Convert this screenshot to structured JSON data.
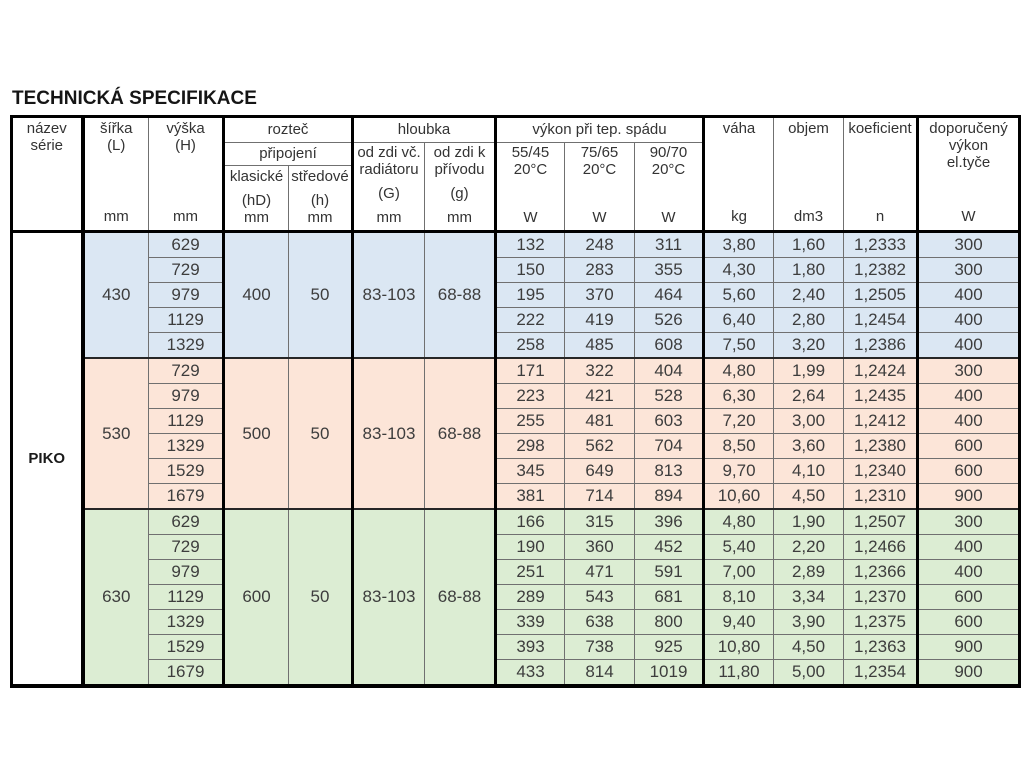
{
  "title": "TECHNICKÁ SPECIFIKACE",
  "colors": {
    "block_blue": "#dbe7f3",
    "block_salmon": "#fce5d8",
    "block_green": "#dcedd3",
    "thick_border": "#000000",
    "thin_border": "#707070"
  },
  "table": {
    "series_label": "PIKO",
    "header": {
      "col_series": {
        "l1": "název",
        "l2": "série"
      },
      "col_width": {
        "label": "šířka",
        "sub": "(L)",
        "unit": "mm"
      },
      "col_height": {
        "label": "výška",
        "sub": "(H)",
        "unit": "mm"
      },
      "grp_pitch": {
        "label": "rozteč",
        "sublabel": "připojení",
        "classic": {
          "label": "klasické",
          "sub": "(hD)",
          "unit": "mm"
        },
        "central": {
          "label": "středové",
          "sub": "(h)",
          "unit": "mm"
        }
      },
      "grp_depth": {
        "label": "hloubka",
        "incl": {
          "l1": "od zdi vč.",
          "l2": "radiátoru",
          "sub": "(G)",
          "unit": "mm"
        },
        "supply": {
          "l1": "od zdi k",
          "l2": "přívodu",
          "sub": "(g)",
          "unit": "mm"
        }
      },
      "grp_power": {
        "label": "výkon při tep. spádu",
        "cols": [
          {
            "l1": "55/45",
            "l2": "20°C",
            "unit": "W"
          },
          {
            "l1": "75/65",
            "l2": "20°C",
            "unit": "W"
          },
          {
            "l1": "90/70",
            "l2": "20°C",
            "unit": "W"
          }
        ]
      },
      "col_weight": {
        "label": "váha",
        "unit": "kg"
      },
      "col_volume": {
        "label": "objem",
        "unit": "dm3"
      },
      "col_coef": {
        "label": "koeficient",
        "unit": "n"
      },
      "col_rec": {
        "l1": "doporučený",
        "l2": "výkon",
        "l3": "el.tyče",
        "unit": "W"
      }
    },
    "blocks": [
      {
        "bg": "#dbe7f3",
        "width": "430",
        "pitch_classic": "400",
        "pitch_central": "50",
        "depth_incl": "83-103",
        "depth_supply": "68-88",
        "rows": [
          {
            "height": "629",
            "p5545": "132",
            "p7565": "248",
            "p9070": "311",
            "weight": "3,80",
            "volume": "1,60",
            "coef": "1,2333",
            "rec": "300"
          },
          {
            "height": "729",
            "p5545": "150",
            "p7565": "283",
            "p9070": "355",
            "weight": "4,30",
            "volume": "1,80",
            "coef": "1,2382",
            "rec": "300"
          },
          {
            "height": "979",
            "p5545": "195",
            "p7565": "370",
            "p9070": "464",
            "weight": "5,60",
            "volume": "2,40",
            "coef": "1,2505",
            "rec": "400"
          },
          {
            "height": "1129",
            "p5545": "222",
            "p7565": "419",
            "p9070": "526",
            "weight": "6,40",
            "volume": "2,80",
            "coef": "1,2454",
            "rec": "400"
          },
          {
            "height": "1329",
            "p5545": "258",
            "p7565": "485",
            "p9070": "608",
            "weight": "7,50",
            "volume": "3,20",
            "coef": "1,2386",
            "rec": "400"
          }
        ]
      },
      {
        "bg": "#fce5d8",
        "width": "530",
        "pitch_classic": "500",
        "pitch_central": "50",
        "depth_incl": "83-103",
        "depth_supply": "68-88",
        "rows": [
          {
            "height": "729",
            "p5545": "171",
            "p7565": "322",
            "p9070": "404",
            "weight": "4,80",
            "volume": "1,99",
            "coef": "1,2424",
            "rec": "300"
          },
          {
            "height": "979",
            "p5545": "223",
            "p7565": "421",
            "p9070": "528",
            "weight": "6,30",
            "volume": "2,64",
            "coef": "1,2435",
            "rec": "400"
          },
          {
            "height": "1129",
            "p5545": "255",
            "p7565": "481",
            "p9070": "603",
            "weight": "7,20",
            "volume": "3,00",
            "coef": "1,2412",
            "rec": "400"
          },
          {
            "height": "1329",
            "p5545": "298",
            "p7565": "562",
            "p9070": "704",
            "weight": "8,50",
            "volume": "3,60",
            "coef": "1,2380",
            "rec": "600"
          },
          {
            "height": "1529",
            "p5545": "345",
            "p7565": "649",
            "p9070": "813",
            "weight": "9,70",
            "volume": "4,10",
            "coef": "1,2340",
            "rec": "600"
          },
          {
            "height": "1679",
            "p5545": "381",
            "p7565": "714",
            "p9070": "894",
            "weight": "10,60",
            "volume": "4,50",
            "coef": "1,2310",
            "rec": "900"
          }
        ]
      },
      {
        "bg": "#dcedd3",
        "width": "630",
        "pitch_classic": "600",
        "pitch_central": "50",
        "depth_incl": "83-103",
        "depth_supply": "68-88",
        "rows": [
          {
            "height": "629",
            "p5545": "166",
            "p7565": "315",
            "p9070": "396",
            "weight": "4,80",
            "volume": "1,90",
            "coef": "1,2507",
            "rec": "300"
          },
          {
            "height": "729",
            "p5545": "190",
            "p7565": "360",
            "p9070": "452",
            "weight": "5,40",
            "volume": "2,20",
            "coef": "1,2466",
            "rec": "400"
          },
          {
            "height": "979",
            "p5545": "251",
            "p7565": "471",
            "p9070": "591",
            "weight": "7,00",
            "volume": "2,89",
            "coef": "1,2366",
            "rec": "400"
          },
          {
            "height": "1129",
            "p5545": "289",
            "p7565": "543",
            "p9070": "681",
            "weight": "8,10",
            "volume": "3,34",
            "coef": "1,2370",
            "rec": "600"
          },
          {
            "height": "1329",
            "p5545": "339",
            "p7565": "638",
            "p9070": "800",
            "weight": "9,40",
            "volume": "3,90",
            "coef": "1,2375",
            "rec": "600"
          },
          {
            "height": "1529",
            "p5545": "393",
            "p7565": "738",
            "p9070": "925",
            "weight": "10,80",
            "volume": "4,50",
            "coef": "1,2363",
            "rec": "900"
          },
          {
            "height": "1679",
            "p5545": "433",
            "p7565": "814",
            "p9070": "1019",
            "weight": "11,80",
            "volume": "5,00",
            "coef": "1,2354",
            "rec": "900"
          }
        ]
      }
    ]
  }
}
